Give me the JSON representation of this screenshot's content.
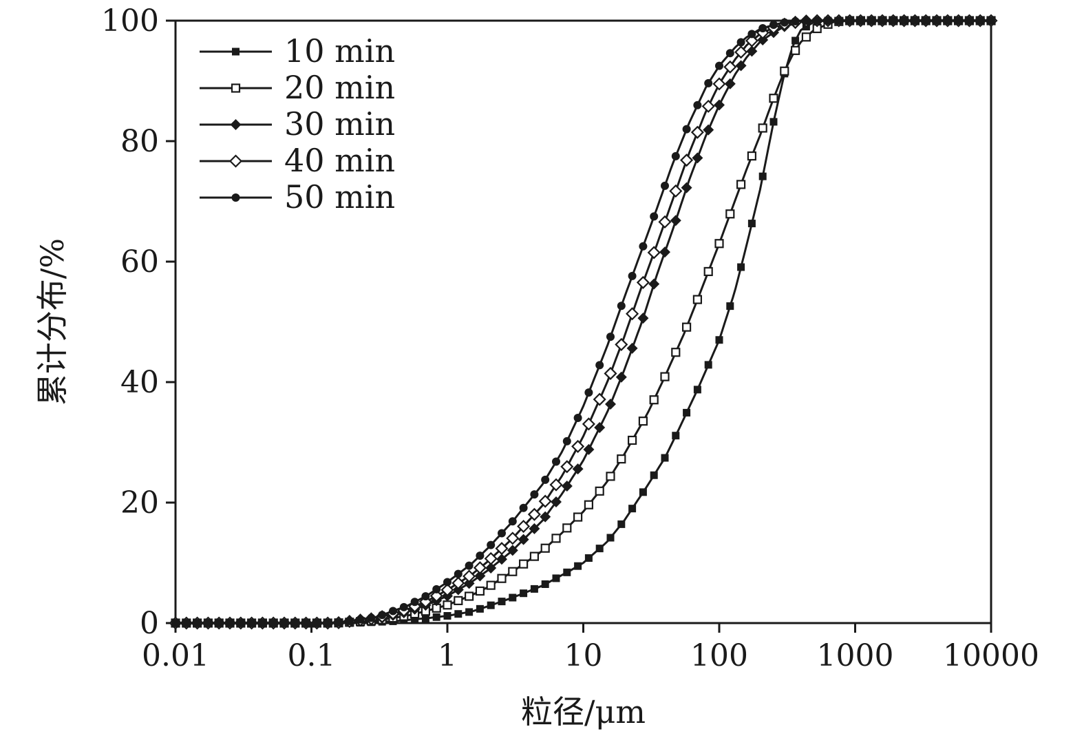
{
  "figure": {
    "background": "#ffffff",
    "ink_color": "#1a1a1a"
  },
  "chart_data": {
    "type": "line",
    "title": "",
    "xlabel": "粒径/μm",
    "ylabel": "累计分布/%",
    "x_scale": "log",
    "xlim": [
      0.01,
      10000
    ],
    "ylim": [
      0,
      100
    ],
    "x_ticks": [
      0.01,
      0.1,
      1,
      10,
      100,
      1000,
      10000
    ],
    "x_tick_labels": [
      "0.01",
      "0.1",
      "1",
      "10",
      "100",
      "1000",
      "10000"
    ],
    "y_ticks": [
      0,
      20,
      40,
      60,
      80,
      100
    ],
    "y_tick_labels": [
      "0",
      "20",
      "40",
      "60",
      "80",
      "100"
    ],
    "grid": false,
    "legend_position": "top-left",
    "marker_step_log10": 0.08,
    "series": [
      {
        "name": "10 min",
        "marker": "square-filled",
        "points": [
          [
            0.01,
            0
          ],
          [
            0.2,
            0
          ],
          [
            0.4,
            0.3
          ],
          [
            0.7,
            0.8
          ],
          [
            1,
            1.2
          ],
          [
            1.5,
            1.9
          ],
          [
            2,
            2.8
          ],
          [
            3,
            4.2
          ],
          [
            5,
            6.2
          ],
          [
            8,
            8.7
          ],
          [
            10,
            10
          ],
          [
            15,
            13.5
          ],
          [
            20,
            17
          ],
          [
            30,
            23
          ],
          [
            40,
            27.5
          ],
          [
            50,
            32
          ],
          [
            70,
            39
          ],
          [
            100,
            47
          ],
          [
            130,
            55
          ],
          [
            160,
            63
          ],
          [
            200,
            72
          ],
          [
            250,
            83
          ],
          [
            300,
            91
          ],
          [
            350,
            96
          ],
          [
            400,
            98.5
          ],
          [
            500,
            99.8
          ],
          [
            600,
            100
          ],
          [
            10000,
            100
          ]
        ]
      },
      {
        "name": "20 min",
        "marker": "square-open",
        "points": [
          [
            0.01,
            0
          ],
          [
            0.15,
            0
          ],
          [
            0.3,
            0.4
          ],
          [
            0.5,
            1.2
          ],
          [
            0.7,
            2
          ],
          [
            1,
            3
          ],
          [
            1.5,
            4.6
          ],
          [
            2,
            6
          ],
          [
            3,
            8.5
          ],
          [
            5,
            12
          ],
          [
            7,
            15
          ],
          [
            10,
            18.5
          ],
          [
            15,
            23.5
          ],
          [
            20,
            28
          ],
          [
            30,
            35
          ],
          [
            40,
            41
          ],
          [
            55,
            48
          ],
          [
            70,
            54
          ],
          [
            100,
            63
          ],
          [
            130,
            70
          ],
          [
            160,
            75.5
          ],
          [
            200,
            81
          ],
          [
            250,
            87
          ],
          [
            300,
            91.5
          ],
          [
            350,
            94.5
          ],
          [
            400,
            96.5
          ],
          [
            500,
            98.5
          ],
          [
            700,
            99.8
          ],
          [
            900,
            100
          ],
          [
            10000,
            100
          ]
        ]
      },
      {
        "name": "30 min",
        "marker": "diamond-filled",
        "points": [
          [
            0.01,
            0
          ],
          [
            0.15,
            0
          ],
          [
            0.3,
            0.6
          ],
          [
            0.5,
            1.8
          ],
          [
            0.7,
            3
          ],
          [
            1,
            4.5
          ],
          [
            1.5,
            6.8
          ],
          [
            2,
            8.8
          ],
          [
            3,
            12
          ],
          [
            5,
            17
          ],
          [
            7,
            21.5
          ],
          [
            10,
            27
          ],
          [
            15,
            35
          ],
          [
            20,
            42
          ],
          [
            27,
            50
          ],
          [
            35,
            58
          ],
          [
            45,
            65
          ],
          [
            60,
            73.5
          ],
          [
            80,
            81
          ],
          [
            100,
            86
          ],
          [
            130,
            91
          ],
          [
            160,
            94
          ],
          [
            200,
            96.5
          ],
          [
            250,
            98
          ],
          [
            300,
            99
          ],
          [
            400,
            99.8
          ],
          [
            500,
            100
          ],
          [
            10000,
            100
          ]
        ]
      },
      {
        "name": "40 min",
        "marker": "diamond-open",
        "points": [
          [
            0.01,
            0
          ],
          [
            0.15,
            0
          ],
          [
            0.3,
            0.8
          ],
          [
            0.5,
            2.2
          ],
          [
            0.7,
            3.6
          ],
          [
            1,
            5.5
          ],
          [
            1.5,
            8
          ],
          [
            2,
            10.3
          ],
          [
            3,
            14
          ],
          [
            5,
            19.5
          ],
          [
            7,
            24.5
          ],
          [
            10,
            31
          ],
          [
            15,
            40
          ],
          [
            20,
            47.5
          ],
          [
            27,
            56
          ],
          [
            35,
            63
          ],
          [
            45,
            70
          ],
          [
            60,
            78
          ],
          [
            80,
            85
          ],
          [
            100,
            89.5
          ],
          [
            130,
            93.5
          ],
          [
            160,
            96
          ],
          [
            200,
            97.8
          ],
          [
            250,
            98.8
          ],
          [
            300,
            99.4
          ],
          [
            400,
            99.9
          ],
          [
            500,
            100
          ],
          [
            10000,
            100
          ]
        ]
      },
      {
        "name": "50 min",
        "marker": "circle-filled",
        "points": [
          [
            0.01,
            0
          ],
          [
            0.15,
            0
          ],
          [
            0.3,
            1
          ],
          [
            0.5,
            2.8
          ],
          [
            0.7,
            4.5
          ],
          [
            1,
            6.8
          ],
          [
            1.5,
            9.8
          ],
          [
            2,
            12.5
          ],
          [
            3,
            16.8
          ],
          [
            5,
            23
          ],
          [
            7,
            28.5
          ],
          [
            10,
            36
          ],
          [
            15,
            46
          ],
          [
            20,
            54
          ],
          [
            27,
            62
          ],
          [
            35,
            69
          ],
          [
            45,
            76
          ],
          [
            60,
            83
          ],
          [
            80,
            89
          ],
          [
            100,
            92.5
          ],
          [
            130,
            95.5
          ],
          [
            160,
            97.3
          ],
          [
            200,
            98.6
          ],
          [
            250,
            99.3
          ],
          [
            300,
            99.7
          ],
          [
            400,
            100
          ],
          [
            10000,
            100
          ]
        ]
      }
    ]
  }
}
